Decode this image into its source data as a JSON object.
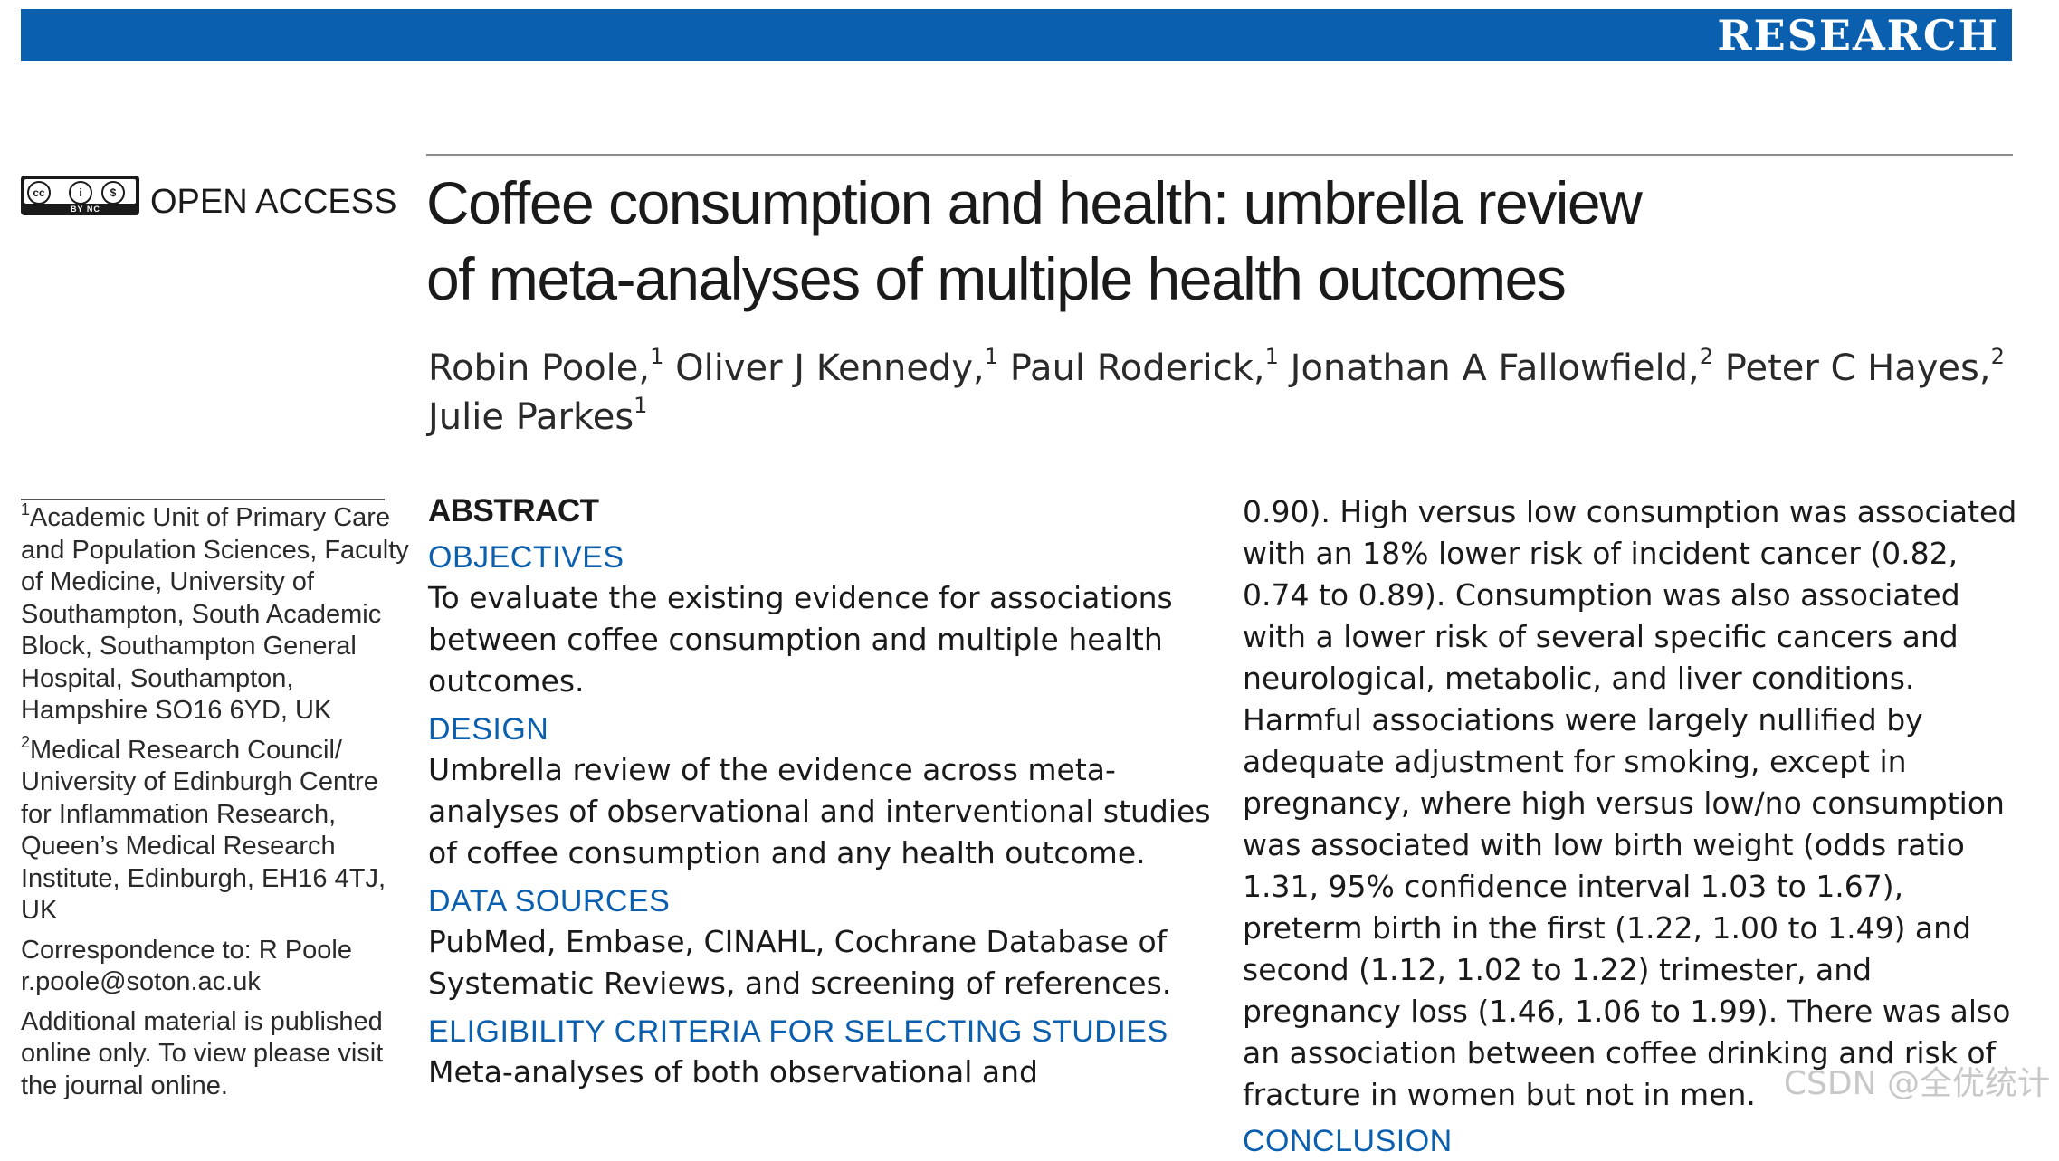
{
  "banner": {
    "label": "RESEARCH",
    "color": "#0a5fae"
  },
  "license": {
    "icon": "creative-commons-by-nc-icon",
    "cc_glyph": "cc",
    "by_glyph": "i",
    "nc_glyph": "$",
    "sub_label": "BY  NC",
    "access_label": "OPEN ACCESS"
  },
  "article": {
    "title_line1": "Coffee consumption and health: umbrella review",
    "title_line2": "of meta-analyses of multiple health outcomes",
    "authors": [
      {
        "name": "Robin Poole,",
        "aff": "1"
      },
      {
        "name": "Oliver J Kennedy,",
        "aff": "1"
      },
      {
        "name": "Paul Roderick,",
        "aff": "1"
      },
      {
        "name": "Jonathan A Fallowfield,",
        "aff": "2"
      },
      {
        "name": "Peter C Hayes,",
        "aff": "2"
      },
      {
        "name": "Julie Parkes",
        "aff": "1"
      }
    ]
  },
  "affiliations": {
    "aff1_num": "1",
    "aff1_text": "Academic Unit of Primary Care and Population Sciences, Faculty of Medicine, University of Southampton, South Academic Block, Southampton General Hospital, Southampton, Hampshire SO16 6YD, UK",
    "aff2_num": "2",
    "aff2_text": "Medical Research Council/ University of Edinburgh Centre for Inflammation Research, Queen’s Medical Research Institute, Edinburgh, EH16 4TJ, UK",
    "correspondence_label": "Correspondence to:",
    "correspondence_name": "R Poole",
    "correspondence_email": "r.poole@soton.ac.uk",
    "additional_material": "Additional material is published online only. To view please visit the journal online."
  },
  "abstract": {
    "heading": "ABSTRACT",
    "objectives_head": "OBJECTIVES",
    "objectives_body": "To evaluate the existing evidence for associations between coffee consumption and multiple health outcomes.",
    "design_head": "DESIGN",
    "design_body": "Umbrella review of the evidence across meta-analyses of observational and interventional studies of coffee consumption and any health outcome.",
    "data_sources_head": "DATA SOURCES",
    "data_sources_body": "PubMed, Embase, CINAHL, Cochrane Database of Systematic Reviews, and screening of references.",
    "eligibility_head": "ELIGIBILITY CRITERIA FOR SELECTING STUDIES",
    "eligibility_body": "Meta-analyses of both observational and",
    "results_continued": "0.90). High versus low consumption was associated with an 18% lower risk of incident cancer (0.82, 0.74 to 0.89). Consumption was also associated with a lower risk of several specific cancers and neurological, metabolic, and liver conditions. Harmful associations were largely nullified by adequate adjustment for smoking, except in pregnancy, where high versus low/no consumption was associated with low birth weight (odds ratio 1.31, 95% confidence interval 1.03 to 1.67), preterm birth in the first (1.22, 1.00 to 1.49) and second (1.12, 1.02 to 1.22) trimester, and pregnancy loss (1.46, 1.06 to 1.99). There was also an association between coffee drinking and risk of fracture in women but not in men.",
    "conclusion_head": "CONCLUSION"
  },
  "watermark": "CSDN @全优统计"
}
